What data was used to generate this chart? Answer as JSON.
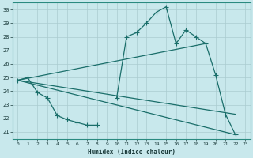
{
  "bg_color": "#c8e8ec",
  "line_color": "#1a6e6a",
  "grid_color": "#aaccd0",
  "xlabel": "Humidex (Indice chaleur)",
  "xlim": [
    -0.5,
    23.5
  ],
  "ylim": [
    20.5,
    30.5
  ],
  "yticks": [
    21,
    22,
    23,
    24,
    25,
    26,
    27,
    28,
    29,
    30
  ],
  "xticks": [
    0,
    1,
    2,
    3,
    4,
    5,
    6,
    7,
    8,
    9,
    10,
    11,
    12,
    13,
    14,
    15,
    16,
    17,
    18,
    19,
    20,
    21,
    22,
    23
  ],
  "seg1_x": [
    0,
    1,
    2,
    3,
    4,
    5,
    6,
    7,
    8
  ],
  "seg1_y": [
    24.8,
    25.0,
    23.9,
    23.5,
    22.2,
    21.9,
    21.7,
    21.5,
    21.5
  ],
  "seg2_x": [
    10,
    11,
    12,
    13,
    14,
    15,
    16,
    17,
    18,
    19,
    20,
    21,
    22
  ],
  "seg2_y": [
    23.5,
    28.0,
    28.3,
    29.0,
    29.8,
    30.2,
    27.5,
    28.5,
    28.0,
    27.5,
    25.2,
    22.3,
    20.8
  ],
  "trend1_x": [
    0,
    19
  ],
  "trend1_y": [
    24.8,
    27.5
  ],
  "trend2_x": [
    0,
    22
  ],
  "trend2_y": [
    24.8,
    22.3
  ],
  "trend3_x": [
    0,
    22
  ],
  "trend3_y": [
    24.8,
    20.8
  ]
}
